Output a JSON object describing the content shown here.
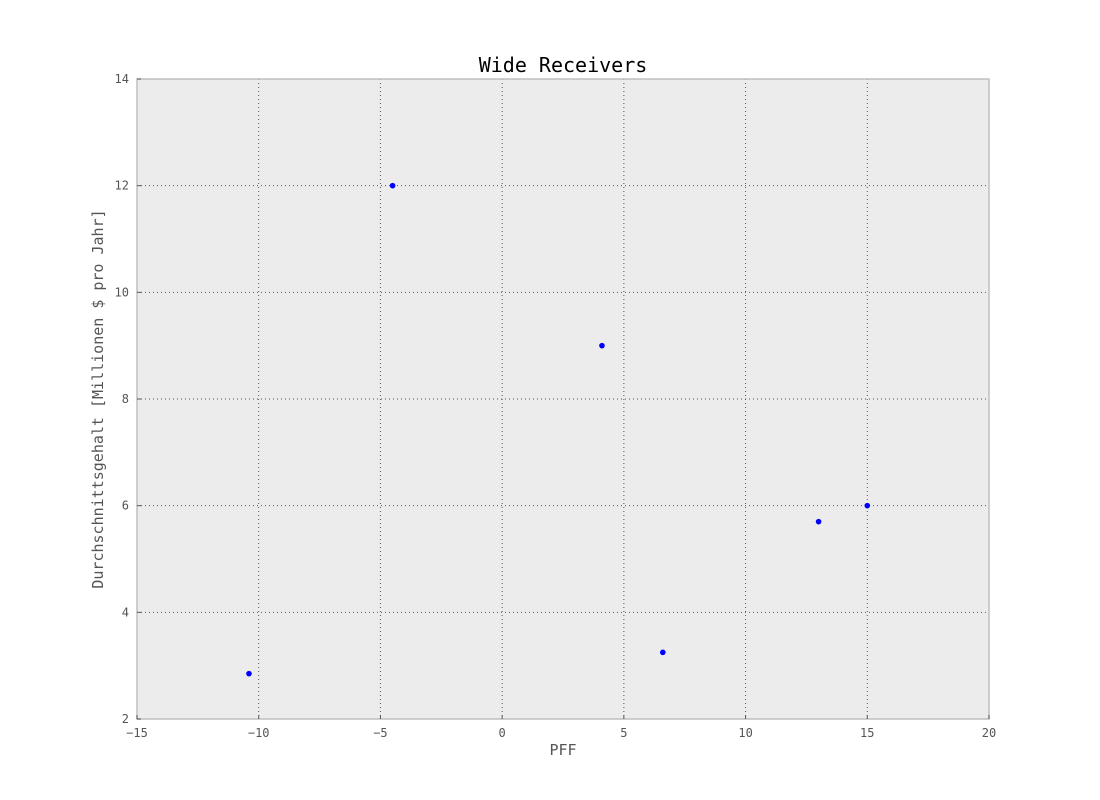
{
  "chart_data": {
    "type": "scatter",
    "title": "Wide Receivers",
    "xlabel": "PFF",
    "ylabel": "Durchschnittsgehalt [Millionen $ pro Jahr]",
    "xlim": [
      -15,
      20
    ],
    "ylim": [
      2,
      14
    ],
    "xticks": [
      -15,
      -10,
      -5,
      0,
      5,
      10,
      15,
      20
    ],
    "yticks": [
      2,
      4,
      6,
      8,
      10,
      12,
      14
    ],
    "xtick_labels": [
      "−15",
      "−10",
      "−5",
      "0",
      "5",
      "10",
      "15",
      "20"
    ],
    "ytick_labels": [
      "2",
      "4",
      "6",
      "8",
      "10",
      "12",
      "14"
    ],
    "grid": true,
    "series": [
      {
        "points": [
          {
            "x": -10.4,
            "y": 2.85
          },
          {
            "x": -4.5,
            "y": 12.0
          },
          {
            "x": 4.1,
            "y": 9.0
          },
          {
            "x": 6.6,
            "y": 3.25
          },
          {
            "x": 13.0,
            "y": 5.7
          },
          {
            "x": 15.0,
            "y": 6.0
          }
        ]
      }
    ],
    "colors": {
      "plot_background": "#ececec",
      "point": "#0000ff",
      "grid": "#555555",
      "frame": "#bfbfbf"
    }
  }
}
